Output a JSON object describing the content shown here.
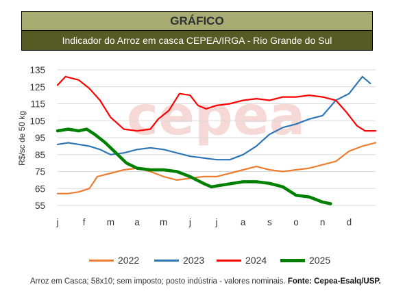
{
  "header": {
    "title": "GRÁFICO",
    "subtitle": "Indicador do Arroz em casca CEPEA/IRGA - Rio Grande do Sul"
  },
  "watermark": "cepea",
  "footnote": {
    "text": "Arroz em Casca; 58x10; sem imposto; posto indústria - valores nominais.",
    "source_label": "Fonte: Cepea-Esalq/USP."
  },
  "chart_data": {
    "type": "line",
    "ylabel": "R$/sc de 50 kg",
    "ylim": [
      55,
      135
    ],
    "yticks": [
      55,
      65,
      75,
      85,
      95,
      105,
      115,
      125,
      135
    ],
    "xlim": [
      0,
      12
    ],
    "categories": [
      "j",
      "f",
      "m",
      "a",
      "m",
      "j",
      "j",
      "a",
      "s",
      "o",
      "n",
      "d"
    ],
    "grid": "horizontal",
    "legend_position": "bottom",
    "series": [
      {
        "name": "2022",
        "color": "#ed7d31",
        "points": [
          [
            0,
            62
          ],
          [
            0.4,
            62
          ],
          [
            0.8,
            63
          ],
          [
            1.2,
            65
          ],
          [
            1.5,
            72
          ],
          [
            2.0,
            74
          ],
          [
            2.5,
            76
          ],
          [
            3.0,
            77
          ],
          [
            3.5,
            75
          ],
          [
            4.0,
            72
          ],
          [
            4.5,
            70
          ],
          [
            5.0,
            71
          ],
          [
            5.5,
            72
          ],
          [
            6.0,
            72
          ],
          [
            6.5,
            74
          ],
          [
            7.0,
            76
          ],
          [
            7.5,
            78
          ],
          [
            8.0,
            76
          ],
          [
            8.5,
            75
          ],
          [
            9.0,
            76
          ],
          [
            9.5,
            77
          ],
          [
            10.0,
            79
          ],
          [
            10.5,
            81
          ],
          [
            11.0,
            87
          ],
          [
            11.5,
            90
          ],
          [
            12.0,
            92
          ]
        ]
      },
      {
        "name": "2023",
        "color": "#2e75b6",
        "points": [
          [
            0,
            91
          ],
          [
            0.4,
            92
          ],
          [
            0.8,
            91
          ],
          [
            1.2,
            90
          ],
          [
            1.6,
            88
          ],
          [
            2.0,
            85
          ],
          [
            2.5,
            86
          ],
          [
            3.0,
            88
          ],
          [
            3.5,
            89
          ],
          [
            4.0,
            88
          ],
          [
            4.5,
            86
          ],
          [
            5.0,
            84
          ],
          [
            5.5,
            83
          ],
          [
            6.0,
            82
          ],
          [
            6.5,
            82
          ],
          [
            7.0,
            85
          ],
          [
            7.5,
            90
          ],
          [
            8.0,
            97
          ],
          [
            8.5,
            101
          ],
          [
            9.0,
            103
          ],
          [
            9.5,
            106
          ],
          [
            10.0,
            108
          ],
          [
            10.5,
            117
          ],
          [
            11.0,
            121
          ],
          [
            11.5,
            131
          ],
          [
            11.8,
            127
          ]
        ]
      },
      {
        "name": "2024",
        "color": "#ff0000",
        "points": [
          [
            0,
            126
          ],
          [
            0.3,
            131
          ],
          [
            0.8,
            129
          ],
          [
            1.2,
            124
          ],
          [
            1.6,
            117
          ],
          [
            2.0,
            107
          ],
          [
            2.5,
            100
          ],
          [
            3.0,
            99
          ],
          [
            3.5,
            100
          ],
          [
            3.8,
            106
          ],
          [
            4.2,
            111
          ],
          [
            4.6,
            121
          ],
          [
            5.0,
            120
          ],
          [
            5.3,
            114
          ],
          [
            5.6,
            112
          ],
          [
            6.0,
            114
          ],
          [
            6.5,
            115
          ],
          [
            7.0,
            117
          ],
          [
            7.5,
            118
          ],
          [
            8.0,
            117
          ],
          [
            8.5,
            119
          ],
          [
            9.0,
            119
          ],
          [
            9.5,
            120
          ],
          [
            10.0,
            119
          ],
          [
            10.5,
            117
          ],
          [
            10.9,
            110
          ],
          [
            11.3,
            102
          ],
          [
            11.6,
            99
          ],
          [
            12.0,
            99
          ]
        ]
      },
      {
        "name": "2025",
        "color": "#008000",
        "points": [
          [
            0,
            99
          ],
          [
            0.4,
            100
          ],
          [
            0.8,
            99
          ],
          [
            1.1,
            100
          ],
          [
            1.4,
            97
          ],
          [
            1.8,
            92
          ],
          [
            2.2,
            86
          ],
          [
            2.6,
            80
          ],
          [
            3.0,
            77
          ],
          [
            3.5,
            76
          ],
          [
            4.0,
            76
          ],
          [
            4.5,
            75
          ],
          [
            5.0,
            72
          ],
          [
            5.5,
            68
          ],
          [
            5.8,
            66
          ],
          [
            6.2,
            67
          ],
          [
            6.6,
            68
          ],
          [
            7.0,
            69
          ],
          [
            7.5,
            69
          ],
          [
            8.0,
            68
          ],
          [
            8.5,
            66
          ],
          [
            9.0,
            61
          ],
          [
            9.5,
            60
          ],
          [
            10.0,
            57
          ],
          [
            10.3,
            56
          ]
        ]
      }
    ]
  }
}
